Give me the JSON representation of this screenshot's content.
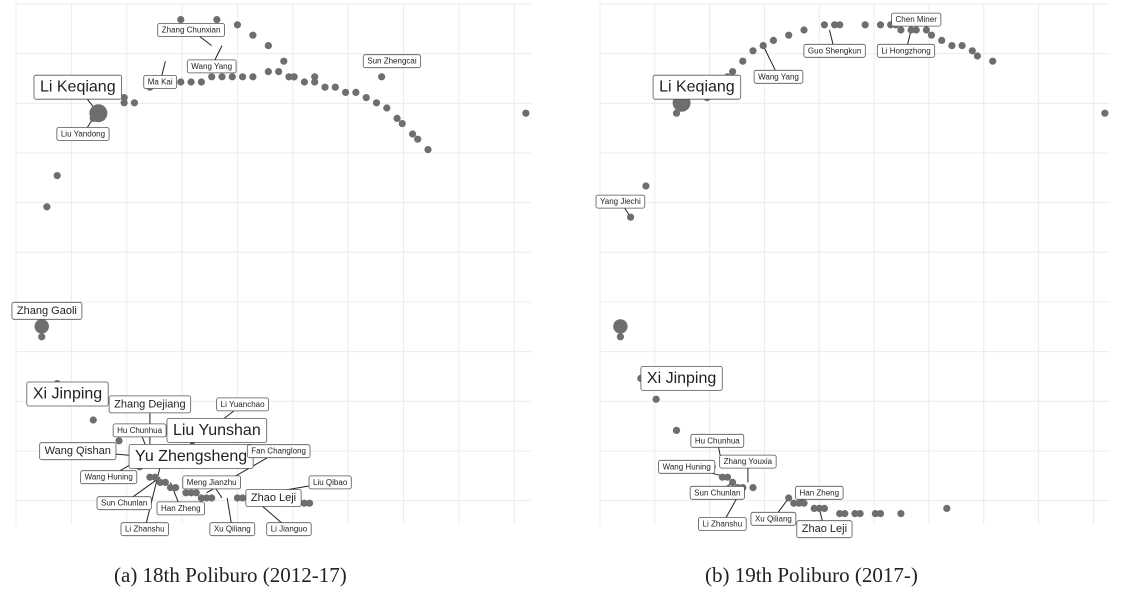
{
  "chart_data": [
    {
      "type": "scatter",
      "caption": "(a) 18th Poliburo (2012-17)",
      "xlim": [
        0,
        100
      ],
      "ylim": [
        0,
        100
      ],
      "grid": true,
      "points": [
        {
          "x": 32,
          "y": 3
        },
        {
          "x": 39,
          "y": 3
        },
        {
          "x": 43,
          "y": 4
        },
        {
          "x": 46,
          "y": 6
        },
        {
          "x": 49,
          "y": 8
        },
        {
          "x": 52,
          "y": 11
        },
        {
          "x": 54,
          "y": 14
        },
        {
          "x": 56,
          "y": 15
        },
        {
          "x": 58,
          "y": 15
        },
        {
          "x": 60,
          "y": 16
        },
        {
          "x": 62,
          "y": 16
        },
        {
          "x": 64,
          "y": 17
        },
        {
          "x": 66,
          "y": 17
        },
        {
          "x": 68,
          "y": 18
        },
        {
          "x": 70,
          "y": 19
        },
        {
          "x": 72,
          "y": 20
        },
        {
          "x": 74,
          "y": 22
        },
        {
          "x": 75,
          "y": 23
        },
        {
          "x": 77,
          "y": 25
        },
        {
          "x": 78,
          "y": 26
        },
        {
          "x": 80,
          "y": 28
        },
        {
          "x": 21,
          "y": 18
        },
        {
          "x": 21,
          "y": 19
        },
        {
          "x": 23,
          "y": 19
        },
        {
          "x": 26,
          "y": 16
        },
        {
          "x": 32,
          "y": 15
        },
        {
          "x": 34,
          "y": 15
        },
        {
          "x": 36,
          "y": 15
        },
        {
          "x": 38,
          "y": 14
        },
        {
          "x": 40,
          "y": 14
        },
        {
          "x": 42,
          "y": 14
        },
        {
          "x": 44,
          "y": 14
        },
        {
          "x": 46,
          "y": 14
        },
        {
          "x": 49,
          "y": 13
        },
        {
          "x": 51,
          "y": 13
        },
        {
          "x": 53,
          "y": 14
        },
        {
          "x": 54,
          "y": 14
        },
        {
          "x": 58,
          "y": 14
        },
        {
          "x": 71,
          "y": 14
        },
        {
          "x": 16,
          "y": 21,
          "size": 2.5
        },
        {
          "x": 15,
          "y": 22
        },
        {
          "x": 8,
          "y": 33
        },
        {
          "x": 6,
          "y": 39
        },
        {
          "x": 5,
          "y": 62,
          "size": 2
        },
        {
          "x": 5,
          "y": 64
        },
        {
          "x": 8,
          "y": 73
        },
        {
          "x": 9,
          "y": 76
        },
        {
          "x": 15,
          "y": 80
        },
        {
          "x": 20,
          "y": 84
        },
        {
          "x": 99,
          "y": 21
        },
        {
          "x": 24,
          "y": 89
        },
        {
          "x": 26,
          "y": 91
        },
        {
          "x": 27,
          "y": 91
        },
        {
          "x": 28,
          "y": 92
        },
        {
          "x": 29,
          "y": 92
        },
        {
          "x": 30,
          "y": 93
        },
        {
          "x": 31,
          "y": 93
        },
        {
          "x": 33,
          "y": 94
        },
        {
          "x": 34,
          "y": 94
        },
        {
          "x": 35,
          "y": 94
        },
        {
          "x": 36,
          "y": 95
        },
        {
          "x": 37,
          "y": 95
        },
        {
          "x": 38,
          "y": 95
        },
        {
          "x": 43,
          "y": 95
        },
        {
          "x": 44,
          "y": 95
        },
        {
          "x": 45,
          "y": 95
        },
        {
          "x": 46,
          "y": 95
        },
        {
          "x": 48,
          "y": 96
        },
        {
          "x": 50,
          "y": 96
        },
        {
          "x": 52,
          "y": 96
        },
        {
          "x": 54,
          "y": 96
        },
        {
          "x": 56,
          "y": 96
        },
        {
          "x": 57,
          "y": 96
        }
      ],
      "labels": [
        {
          "text": "Li Keqiang",
          "size": "large",
          "x": 16,
          "y": 21,
          "lx": 12,
          "ly": 16
        },
        {
          "text": "Liu Yandong",
          "size": "small",
          "x": 15,
          "y": 22,
          "lx": 13,
          "ly": 25
        },
        {
          "text": "Zhang Chunxian",
          "size": "small",
          "x": 38,
          "y": 8,
          "lx": 34,
          "ly": 5
        },
        {
          "text": "Ma Kai",
          "size": "small",
          "x": 29,
          "y": 11,
          "lx": 28,
          "ly": 15
        },
        {
          "text": "Wang Yang",
          "size": "small",
          "x": 40,
          "y": 8,
          "lx": 38,
          "ly": 12
        },
        {
          "text": "Sun Zhengcai",
          "size": "small",
          "x": 77,
          "y": 10,
          "lx": 73,
          "ly": 11
        },
        {
          "text": "Zhang Gaoli",
          "size": "medium",
          "x": 5,
          "y": 62,
          "lx": 6,
          "ly": 59
        },
        {
          "text": "Xi Jinping",
          "size": "large",
          "x": 9,
          "y": 76,
          "lx": 10,
          "ly": 75
        },
        {
          "text": "Zhang Dejiang",
          "size": "medium",
          "x": 26,
          "y": 86,
          "lx": 26,
          "ly": 77
        },
        {
          "text": "Li Yuanchao",
          "size": "small",
          "x": 28,
          "y": 89,
          "lx": 44,
          "ly": 77
        },
        {
          "text": "Hu Chunhua",
          "size": "small",
          "x": 26,
          "y": 87,
          "lx": 24,
          "ly": 82
        },
        {
          "text": "Liu Yunshan",
          "size": "large",
          "x": 28,
          "y": 88,
          "lx": 39,
          "ly": 82
        },
        {
          "text": "Wang Qishan",
          "size": "medium",
          "x": 25,
          "y": 87,
          "lx": 12,
          "ly": 86
        },
        {
          "text": "Yu Zhengsheng",
          "size": "large",
          "x": 27,
          "y": 88,
          "lx": 34,
          "ly": 87
        },
        {
          "text": "Fan Changlong",
          "size": "small",
          "x": 37,
          "y": 94,
          "lx": 51,
          "ly": 86
        },
        {
          "text": "Wang Huning",
          "size": "small",
          "x": 25,
          "y": 87,
          "lx": 18,
          "ly": 91
        },
        {
          "text": "Meng Jianzhu",
          "size": "small",
          "x": 40,
          "y": 95,
          "lx": 38,
          "ly": 92
        },
        {
          "text": "Liu Qibao",
          "size": "small",
          "x": 43,
          "y": 95,
          "lx": 61,
          "ly": 92
        },
        {
          "text": "Zhao Leji",
          "size": "medium",
          "x": 44,
          "y": 95,
          "lx": 50,
          "ly": 95
        },
        {
          "text": "Sun Chunlan",
          "size": "small",
          "x": 28,
          "y": 91,
          "lx": 21,
          "ly": 96
        },
        {
          "text": "Han Zheng",
          "size": "small",
          "x": 30,
          "y": 92,
          "lx": 32,
          "ly": 97
        },
        {
          "text": "Li Zhanshu",
          "size": "small",
          "x": 28,
          "y": 89,
          "lx": 25,
          "ly": 101
        },
        {
          "text": "Xu Qiliang",
          "size": "small",
          "x": 41,
          "y": 95,
          "lx": 42,
          "ly": 101
        },
        {
          "text": "Li Jianguo",
          "size": "small",
          "x": 46,
          "y": 95,
          "lx": 53,
          "ly": 101
        }
      ]
    },
    {
      "type": "scatter",
      "caption": "(b) 19th Poliburo (2017-)",
      "xlim": [
        0,
        100
      ],
      "ylim": [
        0,
        100
      ],
      "grid": true,
      "points": [
        {
          "x": 26,
          "y": 13
        },
        {
          "x": 28,
          "y": 11
        },
        {
          "x": 30,
          "y": 9
        },
        {
          "x": 32,
          "y": 8
        },
        {
          "x": 34,
          "y": 7
        },
        {
          "x": 37,
          "y": 6
        },
        {
          "x": 40,
          "y": 5
        },
        {
          "x": 44,
          "y": 4
        },
        {
          "x": 46,
          "y": 4
        },
        {
          "x": 47,
          "y": 4
        },
        {
          "x": 52,
          "y": 4
        },
        {
          "x": 55,
          "y": 4
        },
        {
          "x": 57,
          "y": 4
        },
        {
          "x": 58,
          "y": 4
        },
        {
          "x": 59,
          "y": 5
        },
        {
          "x": 61,
          "y": 5
        },
        {
          "x": 62,
          "y": 5
        },
        {
          "x": 64,
          "y": 5
        },
        {
          "x": 65,
          "y": 6
        },
        {
          "x": 67,
          "y": 7
        },
        {
          "x": 69,
          "y": 8
        },
        {
          "x": 71,
          "y": 8
        },
        {
          "x": 73,
          "y": 9
        },
        {
          "x": 74,
          "y": 10
        },
        {
          "x": 77,
          "y": 11
        },
        {
          "x": 21,
          "y": 18
        },
        {
          "x": 22,
          "y": 16
        },
        {
          "x": 23,
          "y": 15
        },
        {
          "x": 25,
          "y": 14
        },
        {
          "x": 16,
          "y": 19,
          "size": 2.5
        },
        {
          "x": 15,
          "y": 21
        },
        {
          "x": 9,
          "y": 35
        },
        {
          "x": 6,
          "y": 41
        },
        {
          "x": 4,
          "y": 62,
          "size": 2
        },
        {
          "x": 4,
          "y": 64
        },
        {
          "x": 8,
          "y": 72
        },
        {
          "x": 9,
          "y": 73
        },
        {
          "x": 11,
          "y": 76
        },
        {
          "x": 15,
          "y": 82
        },
        {
          "x": 22,
          "y": 89
        },
        {
          "x": 24,
          "y": 91
        },
        {
          "x": 25,
          "y": 91
        },
        {
          "x": 26,
          "y": 92
        },
        {
          "x": 27,
          "y": 93
        },
        {
          "x": 28,
          "y": 93
        },
        {
          "x": 30,
          "y": 93
        },
        {
          "x": 37,
          "y": 95
        },
        {
          "x": 38,
          "y": 96
        },
        {
          "x": 39,
          "y": 96
        },
        {
          "x": 40,
          "y": 96
        },
        {
          "x": 42,
          "y": 97
        },
        {
          "x": 43,
          "y": 97
        },
        {
          "x": 44,
          "y": 97
        },
        {
          "x": 47,
          "y": 98
        },
        {
          "x": 48,
          "y": 98
        },
        {
          "x": 50,
          "y": 98
        },
        {
          "x": 51,
          "y": 98
        },
        {
          "x": 54,
          "y": 98
        },
        {
          "x": 55,
          "y": 98
        },
        {
          "x": 59,
          "y": 98
        },
        {
          "x": 68,
          "y": 97
        },
        {
          "x": 99,
          "y": 21
        }
      ],
      "labels": [
        {
          "text": "Chen Miner",
          "size": "small",
          "x": 62,
          "y": 5,
          "lx": 62,
          "ly": 3
        },
        {
          "text": "Guo Shengkun",
          "size": "small",
          "x": 45,
          "y": 5,
          "lx": 46,
          "ly": 9
        },
        {
          "text": "Li Hongzhong",
          "size": "small",
          "x": 61,
          "y": 5,
          "lx": 60,
          "ly": 9
        },
        {
          "text": "Wang Yang",
          "size": "small",
          "x": 32,
          "y": 8,
          "lx": 35,
          "ly": 14
        },
        {
          "text": "Li Keqiang",
          "size": "large",
          "x": 16,
          "y": 19,
          "lx": 19,
          "ly": 16
        },
        {
          "text": "Yang Jiechi",
          "size": "small",
          "x": 6,
          "y": 41,
          "lx": 4,
          "ly": 38
        },
        {
          "text": "Xi Jinping",
          "size": "large",
          "x": 9,
          "y": 73,
          "lx": 16,
          "ly": 72
        },
        {
          "text": "Hu Chunhua",
          "size": "small",
          "x": 24,
          "y": 89,
          "lx": 23,
          "ly": 84
        },
        {
          "text": "Wang Huning",
          "size": "small",
          "x": 25,
          "y": 91,
          "lx": 17,
          "ly": 89
        },
        {
          "text": "Zhang Youxia",
          "size": "small",
          "x": 29,
          "y": 92,
          "lx": 29,
          "ly": 88
        },
        {
          "text": "Sun Chunlan",
          "size": "small",
          "x": 26,
          "y": 92,
          "lx": 23,
          "ly": 94
        },
        {
          "text": "Han Zheng",
          "size": "small",
          "x": 38,
          "y": 96,
          "lx": 43,
          "ly": 94
        },
        {
          "text": "Li Zhanshu",
          "size": "small",
          "x": 28,
          "y": 93,
          "lx": 24,
          "ly": 100
        },
        {
          "text": "Xu Qiliang",
          "size": "small",
          "x": 37,
          "y": 95,
          "lx": 34,
          "ly": 99
        },
        {
          "text": "Zhao Leji",
          "size": "medium",
          "x": 43,
          "y": 97,
          "lx": 44,
          "ly": 101
        }
      ]
    }
  ]
}
